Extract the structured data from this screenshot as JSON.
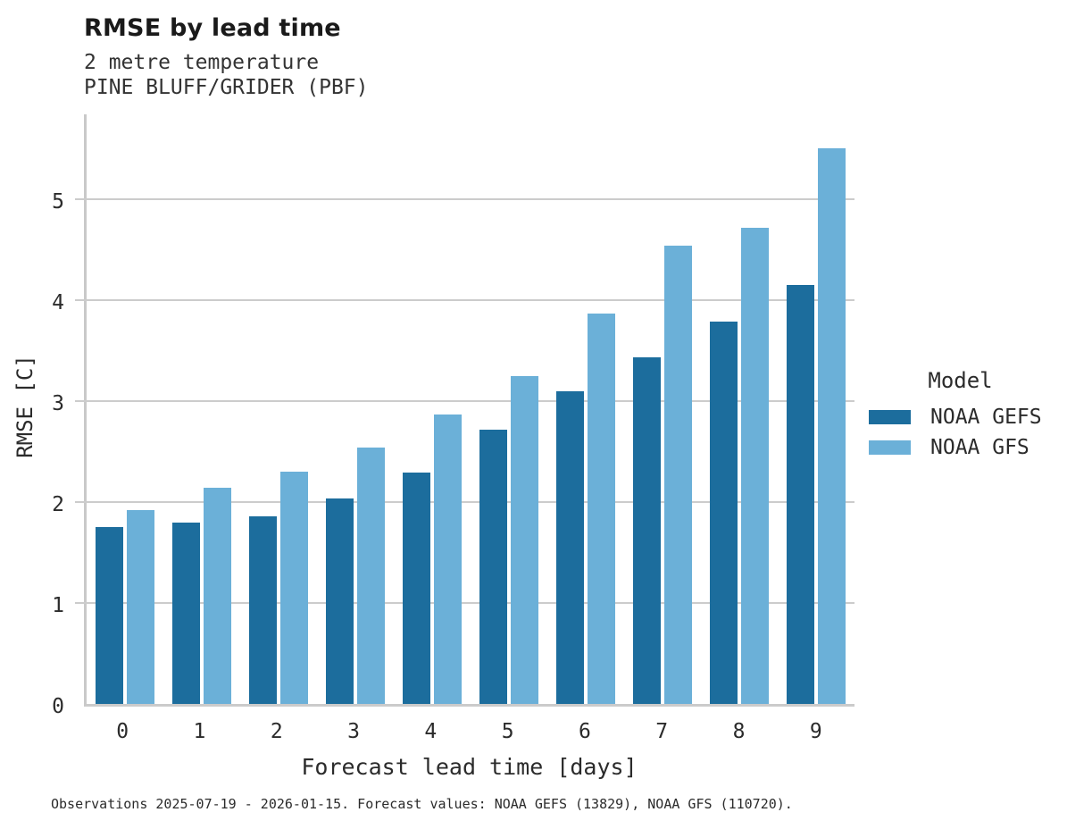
{
  "header": {
    "title": "RMSE by lead time",
    "subtitle_line1": "2 metre temperature",
    "subtitle_line2": "PINE BLUFF/GRIDER (PBF)"
  },
  "chart_data": {
    "type": "bar",
    "title": "RMSE by lead time",
    "subtitle": [
      "2 metre temperature",
      "PINE BLUFF/GRIDER (PBF)"
    ],
    "categories": [
      "0",
      "1",
      "2",
      "3",
      "4",
      "5",
      "6",
      "7",
      "8",
      "9"
    ],
    "series": [
      {
        "name": "NOAA GEFS",
        "color": "#1c6d9d",
        "values": [
          1.76,
          1.81,
          1.87,
          2.05,
          2.3,
          2.73,
          3.11,
          3.45,
          3.81,
          4.17
        ]
      },
      {
        "name": "NOAA GFS",
        "color": "#6bb0d8",
        "values": [
          1.93,
          2.15,
          2.31,
          2.55,
          2.88,
          3.26,
          3.89,
          4.56,
          4.74,
          5.53
        ]
      }
    ],
    "xlabel": "Forecast lead time [days]",
    "ylabel": "RMSE [C]",
    "ylim": [
      0,
      5.87
    ],
    "yticks": [
      0,
      1,
      2,
      3,
      4,
      5
    ],
    "grid": "horizontal",
    "gridline_color": "#cccccc",
    "axis_spine_color": "#c9c9c9",
    "legend_title": "Model",
    "legend_position": "right"
  },
  "legend": {
    "title": "Model",
    "entries": [
      {
        "label": "NOAA GEFS",
        "color": "#1c6d9d"
      },
      {
        "label": "NOAA GFS",
        "color": "#6bb0d8"
      }
    ]
  },
  "footer": {
    "note": "Observations 2025-07-19 - 2026-01-15. Forecast values: NOAA GEFS (13829), NOAA GFS (110720)."
  }
}
